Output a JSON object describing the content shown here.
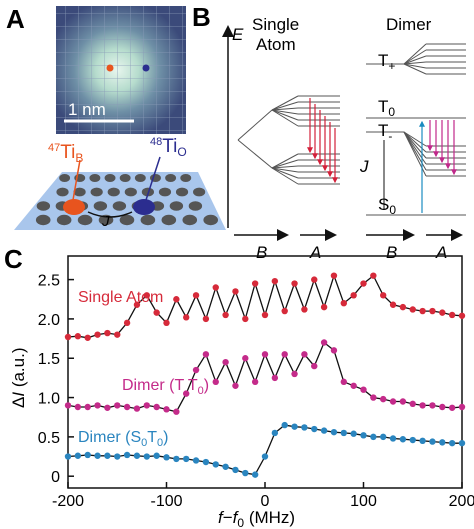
{
  "panel_a": {
    "label": "A",
    "scale_bar": "1 nm",
    "atom_b": {
      "mass": "47",
      "element": "Ti",
      "site": "B"
    },
    "atom_o": {
      "mass": "48",
      "element": "Ti",
      "site": "O"
    },
    "coupling": "J",
    "colors": {
      "atom_b": "#e8541e",
      "atom_o": "#2b2d8f",
      "stm_bg": "#3b4a7a"
    }
  },
  "panel_b": {
    "label": "B",
    "energy_axis": "E",
    "single_title_line1": "Single",
    "single_title_line2": "Atom",
    "dimer_title": "Dimer",
    "states": {
      "t_plus": "T+",
      "t0": "T0",
      "t_minus": "T-",
      "s0": "S0",
      "j": "J"
    },
    "bottom_labels": {
      "b1": "B",
      "a1": "A",
      "b2": "B",
      "a2": "A"
    },
    "colors": {
      "arrows_red": "#d3203a",
      "arrows_magenta": "#c0288a",
      "arrow_blue": "#1a8bc0"
    }
  },
  "panel_c": {
    "label": "C",
    "curve_labels": {
      "single": "Single Atom",
      "dimer_tt": "Dimer (T-T0)",
      "dimer_st": "Dimer (S0T0)"
    },
    "xlabel": "f−f0 (MHz)",
    "ylabel": "ΔI (a.u.)"
  },
  "chart_data": {
    "type": "scatter",
    "xlabel": "f−f0 (MHz)",
    "ylabel": "ΔI (a.u.)",
    "xlim": [
      -200,
      200
    ],
    "ylim": [
      -0.15,
      2.8
    ],
    "xticks": [
      -200,
      -100,
      0,
      100,
      200
    ],
    "yticks": [
      0,
      0.5,
      1.0,
      1.5,
      2.0,
      2.5
    ],
    "ytick_labels": [
      "0",
      "0.5",
      "1.0",
      "1.5",
      "2.0",
      "2.5"
    ],
    "grid": false,
    "series": [
      {
        "name": "Single Atom",
        "color": "#d62a3a",
        "x": [
          -200,
          -190,
          -180,
          -170,
          -160,
          -150,
          -140,
          -130,
          -120,
          -110,
          -100,
          -90,
          -80,
          -70,
          -60,
          -50,
          -40,
          -30,
          -20,
          -10,
          0,
          10,
          20,
          30,
          40,
          50,
          60,
          70,
          80,
          90,
          100,
          110,
          120,
          130,
          140,
          150,
          160,
          170,
          180,
          190,
          200
        ],
        "y": [
          1.77,
          1.78,
          1.76,
          1.8,
          1.82,
          1.8,
          1.95,
          2.18,
          2.3,
          2.08,
          1.95,
          2.25,
          2.02,
          2.3,
          2.0,
          2.4,
          2.05,
          2.35,
          2.0,
          2.45,
          2.05,
          2.48,
          2.1,
          2.45,
          2.12,
          2.5,
          2.15,
          2.55,
          2.2,
          2.3,
          2.45,
          2.55,
          2.3,
          2.18,
          2.15,
          2.12,
          2.1,
          2.1,
          2.08,
          2.05,
          2.04
        ]
      },
      {
        "name": "Dimer (T-T0)",
        "color": "#c42b8a",
        "x": [
          -200,
          -190,
          -180,
          -170,
          -160,
          -150,
          -140,
          -130,
          -120,
          -110,
          -100,
          -90,
          -80,
          -70,
          -60,
          -50,
          -40,
          -30,
          -20,
          -10,
          0,
          10,
          20,
          30,
          40,
          50,
          60,
          70,
          80,
          90,
          100,
          110,
          120,
          130,
          140,
          150,
          160,
          170,
          180,
          190,
          200
        ],
        "y": [
          0.9,
          0.88,
          0.88,
          0.9,
          0.87,
          0.9,
          0.88,
          0.86,
          0.9,
          0.88,
          0.85,
          0.82,
          1.05,
          1.35,
          1.55,
          1.2,
          1.45,
          1.15,
          1.5,
          1.2,
          1.55,
          1.25,
          1.55,
          1.3,
          1.55,
          1.4,
          1.7,
          1.6,
          1.2,
          1.15,
          1.1,
          1.0,
          0.98,
          0.95,
          0.95,
          0.92,
          0.9,
          0.9,
          0.88,
          0.87,
          0.88
        ]
      },
      {
        "name": "Dimer (S0T0)",
        "color": "#2a85bf",
        "x": [
          -200,
          -190,
          -180,
          -170,
          -160,
          -150,
          -140,
          -130,
          -120,
          -110,
          -100,
          -90,
          -80,
          -70,
          -60,
          -50,
          -40,
          -30,
          -20,
          -10,
          0,
          10,
          20,
          30,
          40,
          50,
          60,
          70,
          80,
          90,
          100,
          110,
          120,
          130,
          140,
          150,
          160,
          170,
          180,
          190,
          200
        ],
        "y": [
          0.25,
          0.26,
          0.27,
          0.26,
          0.26,
          0.25,
          0.27,
          0.26,
          0.25,
          0.26,
          0.24,
          0.22,
          0.22,
          0.2,
          0.18,
          0.15,
          0.12,
          0.08,
          0.04,
          0.02,
          0.25,
          0.55,
          0.65,
          0.63,
          0.62,
          0.6,
          0.58,
          0.56,
          0.55,
          0.54,
          0.52,
          0.5,
          0.5,
          0.48,
          0.47,
          0.46,
          0.45,
          0.44,
          0.43,
          0.42,
          0.42
        ]
      }
    ]
  }
}
